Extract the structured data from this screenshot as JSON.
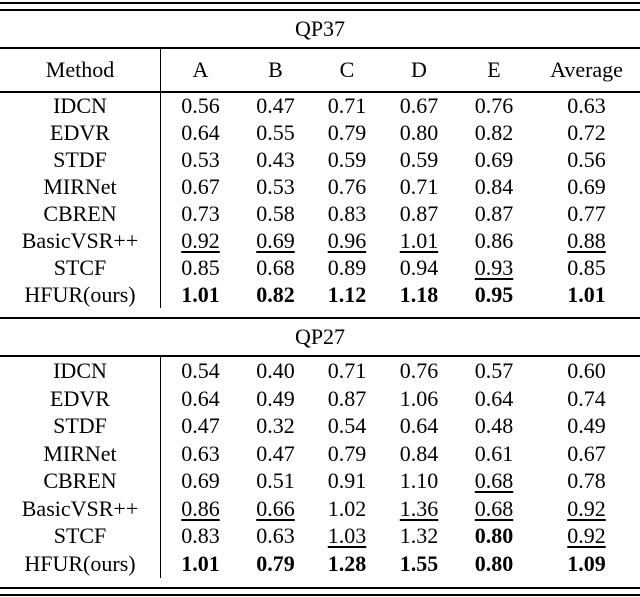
{
  "page": {
    "background_color": "#ffffff",
    "text_color": "#000000"
  },
  "table": {
    "columns": [
      "Method",
      "A",
      "B",
      "C",
      "D",
      "E",
      "Average"
    ],
    "style_legend": {
      "b": "bold (best result)",
      "u": "underline (second-best result)"
    },
    "sections": [
      {
        "title": "QP37",
        "rows": [
          {
            "method": "IDCN",
            "values": [
              "0.56",
              "0.47",
              "0.71",
              "0.67",
              "0.76",
              "0.63"
            ],
            "styles": [
              "",
              "",
              "",
              "",
              "",
              ""
            ]
          },
          {
            "method": "EDVR",
            "values": [
              "0.64",
              "0.55",
              "0.79",
              "0.80",
              "0.82",
              "0.72"
            ],
            "styles": [
              "",
              "",
              "",
              "",
              "",
              ""
            ]
          },
          {
            "method": "STDF",
            "values": [
              "0.53",
              "0.43",
              "0.59",
              "0.59",
              "0.69",
              "0.56"
            ],
            "styles": [
              "",
              "",
              "",
              "",
              "",
              ""
            ]
          },
          {
            "method": "MIRNet",
            "values": [
              "0.67",
              "0.53",
              "0.76",
              "0.71",
              "0.84",
              "0.69"
            ],
            "styles": [
              "",
              "",
              "",
              "",
              "",
              ""
            ]
          },
          {
            "method": "CBREN",
            "values": [
              "0.73",
              "0.58",
              "0.83",
              "0.87",
              "0.87",
              "0.77"
            ],
            "styles": [
              "",
              "",
              "",
              "",
              "",
              ""
            ]
          },
          {
            "method": "BasicVSR++",
            "values": [
              "0.92",
              "0.69",
              "0.96",
              "1.01",
              "0.86",
              "0.88"
            ],
            "styles": [
              "u",
              "u",
              "u",
              "u",
              "",
              "u"
            ]
          },
          {
            "method": "STCF",
            "values": [
              "0.85",
              "0.68",
              "0.89",
              "0.94",
              "0.93",
              "0.85"
            ],
            "styles": [
              "",
              "",
              "",
              "",
              "u",
              ""
            ]
          },
          {
            "method": "HFUR(ours)",
            "values": [
              "1.01",
              "0.82",
              "1.12",
              "1.18",
              "0.95",
              "1.01"
            ],
            "styles": [
              "b",
              "b",
              "b",
              "b",
              "b",
              "b"
            ]
          }
        ]
      },
      {
        "title": "QP27",
        "rows": [
          {
            "method": "IDCN",
            "values": [
              "0.54",
              "0.40",
              "0.71",
              "0.76",
              "0.57",
              "0.60"
            ],
            "styles": [
              "",
              "",
              "",
              "",
              "",
              ""
            ]
          },
          {
            "method": "EDVR",
            "values": [
              "0.64",
              "0.49",
              "0.87",
              "1.06",
              "0.64",
              "0.74"
            ],
            "styles": [
              "",
              "",
              "",
              "",
              "",
              ""
            ]
          },
          {
            "method": "STDF",
            "values": [
              "0.47",
              "0.32",
              "0.54",
              "0.64",
              "0.48",
              "0.49"
            ],
            "styles": [
              "",
              "",
              "",
              "",
              "",
              ""
            ]
          },
          {
            "method": "MIRNet",
            "values": [
              "0.63",
              "0.47",
              "0.79",
              "0.84",
              "0.61",
              "0.67"
            ],
            "styles": [
              "",
              "",
              "",
              "",
              "",
              ""
            ]
          },
          {
            "method": "CBREN",
            "values": [
              "0.69",
              "0.51",
              "0.91",
              "1.10",
              "0.68",
              "0.78"
            ],
            "styles": [
              "",
              "",
              "",
              "",
              "u",
              ""
            ]
          },
          {
            "method": "BasicVSR++",
            "values": [
              "0.86",
              "0.66",
              "1.02",
              "1.36",
              "0.68",
              "0.92"
            ],
            "styles": [
              "u",
              "u",
              "",
              "u",
              "u",
              "u"
            ]
          },
          {
            "method": "STCF",
            "values": [
              "0.83",
              "0.63",
              "1.03",
              "1.32",
              "0.80",
              "0.92"
            ],
            "styles": [
              "",
              "",
              "u",
              "",
              "b",
              "u"
            ]
          },
          {
            "method": "HFUR(ours)",
            "values": [
              "1.01",
              "0.79",
              "1.28",
              "1.55",
              "0.80",
              "1.09"
            ],
            "styles": [
              "b",
              "b",
              "b",
              "b",
              "b",
              "b"
            ]
          }
        ]
      }
    ]
  }
}
